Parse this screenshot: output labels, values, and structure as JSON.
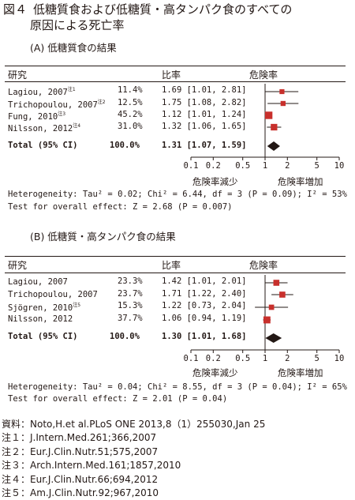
{
  "figure_title": {
    "label": "図４",
    "line1": "低糖質食および低糖質・高タンパク食のすべての",
    "line2": "原因による死亡率"
  },
  "column_headers": {
    "study": "研究",
    "ratio": "比率",
    "risk": "危険率"
  },
  "axis": {
    "ticks": [
      "0.1",
      "0.2",
      "0.5",
      "1",
      "2",
      "5",
      "10"
    ],
    "left_label": "危険率減少",
    "right_label": "危険率増加"
  },
  "colors": {
    "marker": "#c8302c",
    "text": "#231815"
  },
  "chart_data": [
    {
      "type": "forest",
      "title": "(A) 低糖質食の結果",
      "x_scale": "log",
      "xlim": [
        0.1,
        10
      ],
      "studies": [
        {
          "name": "Lagiou, 2007",
          "note": "注1",
          "weight": "11.4%",
          "ratio_text": "1.69 [1.01, 2.81]",
          "hr": 1.69,
          "lo": 1.01,
          "hi": 2.81
        },
        {
          "name": "Trichopoulou, 2007",
          "note": "注2",
          "weight": "12.5%",
          "ratio_text": "1.75 [1.08, 2.82]",
          "hr": 1.75,
          "lo": 1.08,
          "hi": 2.82
        },
        {
          "name": "Fung, 2010",
          "note": "注3",
          "weight": "45.2%",
          "ratio_text": "1.12 [1.01, 1.24]",
          "hr": 1.12,
          "lo": 1.01,
          "hi": 1.24
        },
        {
          "name": "Nilsson, 2012",
          "note": "注4",
          "weight": "31.0%",
          "ratio_text": "1.32 [1.06, 1.65]",
          "hr": 1.32,
          "lo": 1.06,
          "hi": 1.65
        }
      ],
      "total": {
        "name": "Total (95% CI)",
        "weight": "100.0%",
        "ratio_text": "1.31 [1.07, 1.59]",
        "hr": 1.31,
        "lo": 1.07,
        "hi": 1.59
      },
      "heterogeneity": "Heterogeneity: Tau² = 0.02; Chi² = 6.44, df = 3 (P = 0.09); I² = 53%",
      "overall": "Test for overall effect: Z = 2.68 (P = 0.007)"
    },
    {
      "type": "forest",
      "title": "(B) 低糖質・高タンパク食の結果",
      "x_scale": "log",
      "xlim": [
        0.1,
        10
      ],
      "studies": [
        {
          "name": "Lagiou, 2007",
          "note": "",
          "weight": "23.3%",
          "ratio_text": "1.42 [1.01, 2.01]",
          "hr": 1.42,
          "lo": 1.01,
          "hi": 2.01
        },
        {
          "name": "Trichopoulou, 2007",
          "note": "",
          "weight": "23.7%",
          "ratio_text": "1.71 [1.22, 2.40]",
          "hr": 1.71,
          "lo": 1.22,
          "hi": 2.4
        },
        {
          "name": "Sjögren, 2010",
          "note": "注5",
          "weight": "15.3%",
          "ratio_text": "1.22 [0.73, 2.04]",
          "hr": 1.22,
          "lo": 0.73,
          "hi": 2.04
        },
        {
          "name": "Nilsson, 2012",
          "note": "",
          "weight": "37.7%",
          "ratio_text": "1.06 [0.94, 1.19]",
          "hr": 1.06,
          "lo": 0.94,
          "hi": 1.19
        }
      ],
      "total": {
        "name": "Total (95% CI)",
        "weight": "100.0%",
        "ratio_text": "1.30 [1.01, 1.68]",
        "hr": 1.3,
        "lo": 1.01,
        "hi": 1.68
      },
      "heterogeneity": "Heterogeneity: Tau² = 0.04; Chi² = 8.55, df = 3 (P = 0.04); I² = 65%",
      "overall": "Test for overall effect: Z = 2.01 (P = 0.04)"
    }
  ],
  "references": [
    "資料：Noto,H.et al.PLoS ONE 2013,8（1）255030,Jan 25",
    "注１：J.Intern.Med.261;366,2007",
    "注２：Eur.J.Clin.Nutr.51;575,2007",
    "注３：Arch.Intern.Med.161;1857,2010",
    "注４：Eur.J.Clin.Nutr.66;694,2012",
    "注５：Am.J.Clin.Nutr.92;967,2010"
  ]
}
